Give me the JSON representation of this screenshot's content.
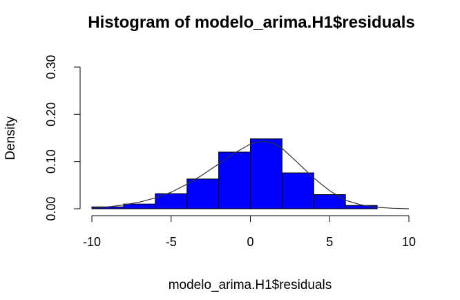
{
  "chart_data": {
    "type": "bar",
    "subtype": "histogram",
    "title": "Histogram of modelo_arima.H1$residuals",
    "xlabel": "modelo_arima.H1$residuals",
    "ylabel": "Density",
    "bar_color": "#0000FF",
    "xlim": [
      -10,
      10
    ],
    "ylim": [
      0,
      0.3
    ],
    "x_ticks": [
      -10,
      -5,
      0,
      5,
      10
    ],
    "y_ticks": [
      0.0,
      0.1,
      0.2,
      0.3
    ],
    "x_tick_labels": [
      "-10",
      "-5",
      "0",
      "5",
      "10"
    ],
    "y_tick_labels": [
      "0.00",
      "0.10",
      "0.20",
      "0.30"
    ],
    "bins": [
      {
        "start": -10,
        "end": -8,
        "density": 0.004
      },
      {
        "start": -8,
        "end": -6,
        "density": 0.01
      },
      {
        "start": -6,
        "end": -4,
        "density": 0.032
      },
      {
        "start": -4,
        "end": -2,
        "density": 0.063
      },
      {
        "start": -2,
        "end": 0,
        "density": 0.12
      },
      {
        "start": 0,
        "end": 2,
        "density": 0.148
      },
      {
        "start": 2,
        "end": 4,
        "density": 0.076
      },
      {
        "start": 4,
        "end": 6,
        "density": 0.03
      },
      {
        "start": 6,
        "end": 8,
        "density": 0.007
      }
    ],
    "density_curve": {
      "x": [
        -10,
        -9,
        -8,
        -7,
        -6,
        -5,
        -4,
        -3,
        -2,
        -1,
        0,
        0.5,
        1,
        1.5,
        2,
        3,
        4,
        5,
        6,
        7,
        8,
        9,
        10
      ],
      "y": [
        0.001,
        0.004,
        0.008,
        0.014,
        0.023,
        0.035,
        0.052,
        0.072,
        0.095,
        0.118,
        0.137,
        0.142,
        0.142,
        0.138,
        0.128,
        0.097,
        0.065,
        0.038,
        0.018,
        0.008,
        0.003,
        0.001,
        0.0
      ]
    },
    "grid": false,
    "legend": "none"
  }
}
